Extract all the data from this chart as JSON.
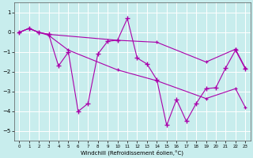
{
  "xlabel": "Windchill (Refroidissement éolien,°C)",
  "xlim": [
    -0.5,
    23.5
  ],
  "ylim": [
    -5.5,
    1.5
  ],
  "yticks": [
    1,
    0,
    -1,
    -2,
    -3,
    -4,
    -5
  ],
  "xticks": [
    0,
    1,
    2,
    3,
    4,
    5,
    6,
    7,
    8,
    9,
    10,
    11,
    12,
    13,
    14,
    15,
    16,
    17,
    18,
    19,
    20,
    21,
    22,
    23
  ],
  "background_color": "#c8eded",
  "line_color": "#aa00aa",
  "grid_color": "#ffffff",
  "main_x": [
    0,
    1,
    2,
    3,
    4,
    5,
    6,
    7,
    8,
    9,
    10,
    11,
    12,
    13,
    14,
    15,
    16,
    17,
    18,
    19,
    20,
    21,
    22,
    23
  ],
  "main_y": [
    0,
    0.2,
    0.0,
    -0.1,
    -1.7,
    -1.0,
    -4.0,
    -3.6,
    -1.1,
    -0.45,
    -0.4,
    0.7,
    -1.3,
    -1.6,
    -2.4,
    -4.7,
    -3.4,
    -4.5,
    -3.6,
    -2.85,
    -2.8,
    -1.8,
    -0.9,
    -1.85
  ],
  "upper_x": [
    0,
    1,
    2,
    3,
    10,
    14,
    19,
    22,
    23
  ],
  "upper_y": [
    0,
    0.2,
    0.0,
    -0.1,
    -0.4,
    -0.5,
    -1.5,
    -0.85,
    -1.8
  ],
  "lower_x": [
    0,
    1,
    2,
    3,
    5,
    10,
    14,
    19,
    22,
    23
  ],
  "lower_y": [
    0,
    0.2,
    0.0,
    -0.15,
    -0.9,
    -1.9,
    -2.45,
    -3.35,
    -2.85,
    -3.8
  ]
}
